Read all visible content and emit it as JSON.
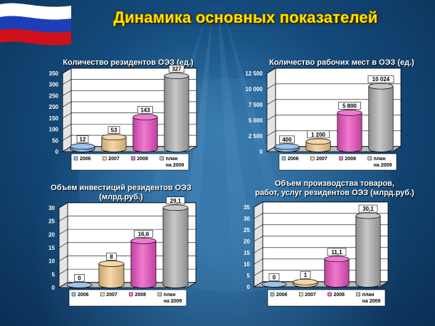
{
  "title": "Динамика основных показателей",
  "colors": {
    "series": [
      "#9ec3ea",
      "#f5d7a6",
      "#f07ad0",
      "#c8c8c8"
    ],
    "series_dark": [
      "#5b87b8",
      "#c9a672",
      "#c0409e",
      "#8d8d8d"
    ],
    "title": "#ffe400"
  },
  "chart_data": [
    {
      "type": "bar",
      "title": "Количество  резидентов  ОЭЗ (ед.)",
      "categories": [
        "2006",
        "2007",
        "2008",
        "план на 2009"
      ],
      "legend": [
        "2006",
        "2007",
        "2008",
        "план",
        "на 2009"
      ],
      "values": [
        12,
        53,
        143,
        327
      ],
      "value_labels": [
        "12",
        "53",
        "143",
        "327"
      ],
      "ylim": [
        0,
        350
      ],
      "yticks": [
        "0",
        "50",
        "100",
        "150",
        "200",
        "250",
        "300",
        "350"
      ],
      "ytick_values": [
        0,
        50,
        100,
        150,
        200,
        250,
        300,
        350
      ],
      "grid": true,
      "legend_position": "bottom"
    },
    {
      "type": "bar",
      "title": "Количество  рабочих  мест в  ОЭЗ (ед.)",
      "categories": [
        "2006",
        "2007",
        "2008",
        "план на 2009"
      ],
      "legend": [
        "2006",
        "2007",
        "2008",
        "план",
        "на 2009"
      ],
      "values": [
        400,
        1200,
        5800,
        10024
      ],
      "value_labels": [
        "400",
        "1 200",
        "5 800",
        "10 024"
      ],
      "ylim": [
        0,
        12500
      ],
      "yticks": [
        "0",
        "2 500",
        "5 000",
        "7 500",
        "10 000",
        "12 500"
      ],
      "ytick_values": [
        0,
        2500,
        5000,
        7500,
        10000,
        12500
      ],
      "grid": true,
      "legend_position": "bottom"
    },
    {
      "type": "bar",
      "title": "Объем  инвестиций  резидентов  ОЭЗ",
      "title_line2": "(млрд.руб.)",
      "categories": [
        "2006",
        "2007",
        "2008",
        "план на 2009"
      ],
      "legend": [
        "2006",
        "2007",
        "2008",
        "план",
        "на 2009"
      ],
      "values": [
        0,
        8,
        16.6,
        29.1
      ],
      "value_labels": [
        "0",
        "8",
        "16,6",
        "29,1"
      ],
      "ylim": [
        0,
        30
      ],
      "yticks": [
        "0",
        "5",
        "10",
        "15",
        "20",
        "25",
        "30"
      ],
      "ytick_values": [
        0,
        5,
        10,
        15,
        20,
        25,
        30
      ],
      "grid": true,
      "legend_position": "bottom"
    },
    {
      "type": "bar",
      "title": "Объем  производства  товаров,",
      "title_line2": "работ, услуг резидентов  ОЭЗ (млрд.руб.)",
      "categories": [
        "2006",
        "2007",
        "2008",
        "план на 2009"
      ],
      "legend": [
        "2006",
        "2007",
        "2008",
        "план",
        "на 2009"
      ],
      "values": [
        0,
        1,
        11.1,
        30.1
      ],
      "value_labels": [
        "0",
        "1",
        "11,1",
        "30,1"
      ],
      "ylim": [
        0,
        35
      ],
      "yticks": [
        "0",
        "5",
        "10",
        "15",
        "20",
        "25",
        "30",
        "35"
      ],
      "ytick_values": [
        0,
        5,
        10,
        15,
        20,
        25,
        30,
        35
      ],
      "grid": true,
      "legend_position": "bottom"
    }
  ]
}
